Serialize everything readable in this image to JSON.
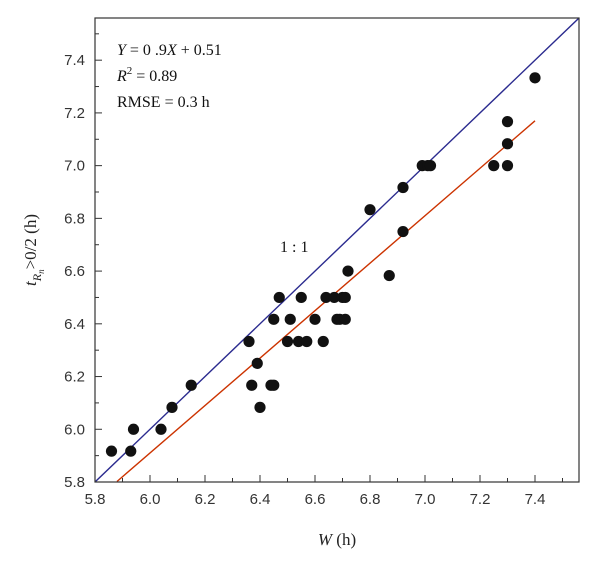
{
  "chart_data": {
    "type": "scatter",
    "xlabel": {
      "italic": "W",
      "rest": " (h)"
    },
    "ylabel": {
      "main": "t",
      "sub": "R",
      "subsub": "n",
      "rest": ">0/2 (h)"
    },
    "xlim": [
      5.8,
      7.56
    ],
    "ylim": [
      5.8,
      7.56
    ],
    "xticks": [
      "5.8",
      "6.0",
      "6.2",
      "6.4",
      "6.6",
      "6.8",
      "7.0",
      "7.2",
      "7.4"
    ],
    "yticks": [
      "5.8",
      "6.0",
      "6.2",
      "6.4",
      "6.6",
      "6.8",
      "7.0",
      "7.2",
      "7.4"
    ],
    "annotations": {
      "eq_prefix": "Y",
      "eq_body": " = 0 .9",
      "eq_x": "X",
      "eq_suffix": " + 0.51",
      "r2_prefix": "R",
      "r2_sup": "2",
      "r2_suffix": " = 0.89",
      "rmse": "RMSE = 0.3 h",
      "one_to_one": "1 : 1"
    },
    "lines": [
      {
        "name": "1:1",
        "color": "#2b2b8f",
        "x": [
          5.8,
          7.56
        ],
        "y": [
          5.8,
          7.56
        ]
      },
      {
        "name": "fit",
        "color": "#cc3300",
        "x": [
          5.88,
          7.4
        ],
        "y": [
          5.802,
          7.17
        ]
      }
    ],
    "points": [
      [
        5.86,
        5.917
      ],
      [
        5.93,
        5.917
      ],
      [
        5.94,
        6.0
      ],
      [
        6.04,
        6.0
      ],
      [
        6.08,
        6.083
      ],
      [
        6.15,
        6.167
      ],
      [
        6.36,
        6.333
      ],
      [
        6.37,
        6.167
      ],
      [
        6.39,
        6.25
      ],
      [
        6.4,
        6.083
      ],
      [
        6.44,
        6.167
      ],
      [
        6.45,
        6.167
      ],
      [
        6.45,
        6.417
      ],
      [
        6.47,
        6.5
      ],
      [
        6.5,
        6.333
      ],
      [
        6.51,
        6.417
      ],
      [
        6.54,
        6.333
      ],
      [
        6.55,
        6.5
      ],
      [
        6.57,
        6.333
      ],
      [
        6.6,
        6.417
      ],
      [
        6.63,
        6.333
      ],
      [
        6.64,
        6.5
      ],
      [
        6.67,
        6.5
      ],
      [
        6.68,
        6.417
      ],
      [
        6.69,
        6.417
      ],
      [
        6.7,
        6.5
      ],
      [
        6.71,
        6.5
      ],
      [
        6.71,
        6.417
      ],
      [
        6.72,
        6.6
      ],
      [
        6.8,
        6.833
      ],
      [
        6.87,
        6.583
      ],
      [
        6.92,
        6.917
      ],
      [
        6.92,
        6.75
      ],
      [
        6.99,
        7.0
      ],
      [
        7.01,
        7.0
      ],
      [
        7.02,
        7.0
      ],
      [
        7.25,
        7.0
      ],
      [
        7.3,
        7.167
      ],
      [
        7.3,
        7.083
      ],
      [
        7.3,
        7.0
      ],
      [
        7.4,
        7.333
      ]
    ],
    "point_color": "#111111",
    "grid": false
  }
}
